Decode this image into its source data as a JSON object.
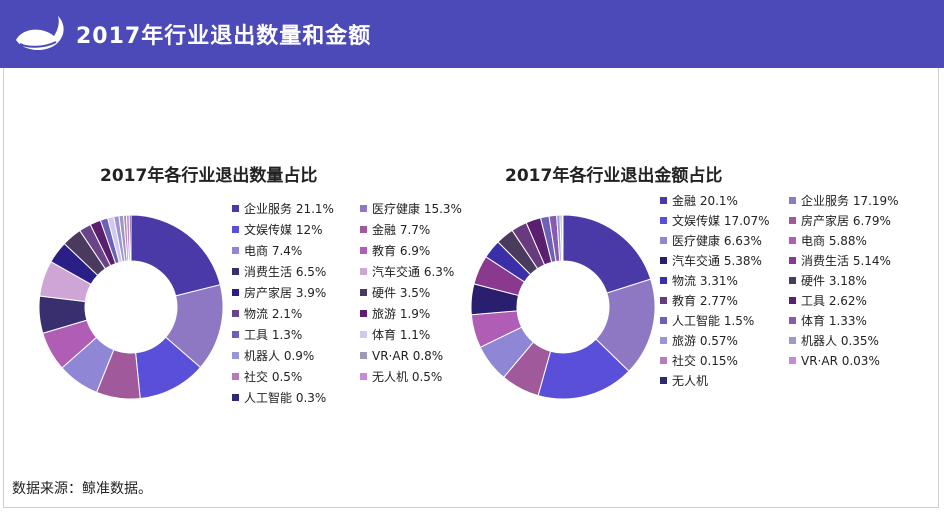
{
  "header": {
    "title": "2017年行业退出数量和金额"
  },
  "source_note": "数据来源：鲸准数据。",
  "colors": {
    "header": "#4c4ab8"
  },
  "chart_data": [
    {
      "type": "pie",
      "donut": true,
      "title": "2017年各行业退出数量占比",
      "legend_position": "right",
      "slices": [
        {
          "label": "企业服务 21.1%",
          "name": "企业服务",
          "value": 21.1,
          "color": "#4a3aa8"
        },
        {
          "label": "医疗健康 15.3%",
          "name": "医疗健康",
          "value": 15.3,
          "color": "#8e78c4"
        },
        {
          "label": "文娱传媒 12%",
          "name": "文娱传媒",
          "value": 12.0,
          "color": "#5a4fd8"
        },
        {
          "label": "金融 7.7%",
          "name": "金融",
          "value": 7.7,
          "color": "#a05a9c"
        },
        {
          "label": "电商 7.4%",
          "name": "电商",
          "value": 7.4,
          "color": "#8f86d6"
        },
        {
          "label": "教育 6.9%",
          "name": "教育",
          "value": 6.9,
          "color": "#b05db5"
        },
        {
          "label": "消费生活 6.5%",
          "name": "消费生活",
          "value": 6.5,
          "color": "#3a2f6e"
        },
        {
          "label": "汽车交通 6.3%",
          "name": "汽车交通",
          "value": 6.3,
          "color": "#cfa5d6"
        },
        {
          "label": "房产家居 3.9%",
          "name": "房产家居",
          "value": 3.9,
          "color": "#2a1f86"
        },
        {
          "label": "硬件 3.5%",
          "name": "硬件",
          "value": 3.5,
          "color": "#4a3a5e"
        },
        {
          "label": "物流 2.1%",
          "name": "物流",
          "value": 2.1,
          "color": "#6a4488"
        },
        {
          "label": "旅游 1.9%",
          "name": "旅游",
          "value": 1.9,
          "color": "#5a1f6e"
        },
        {
          "label": "工具 1.3%",
          "name": "工具",
          "value": 1.3,
          "color": "#6b62b8"
        },
        {
          "label": "体育 1.1%",
          "name": "体育",
          "value": 1.1,
          "color": "#d0c8f2"
        },
        {
          "label": "机器人 0.9%",
          "name": "机器人",
          "value": 0.9,
          "color": "#9a96d6"
        },
        {
          "label": "VR·AR 0.8%",
          "name": "VR·AR",
          "value": 0.8,
          "color": "#a098b8"
        },
        {
          "label": "社交 0.5%",
          "name": "社交",
          "value": 0.5,
          "color": "#b87ab8"
        },
        {
          "label": "无人机 0.5%",
          "name": "无人机",
          "value": 0.5,
          "color": "#c68ad6"
        },
        {
          "label": "人工智能 0.3%",
          "name": "人工智能",
          "value": 0.3,
          "color": "#2f2a6e"
        }
      ]
    },
    {
      "type": "pie",
      "donut": true,
      "title": "2017年各行业退出金额占比",
      "legend_position": "right",
      "slices": [
        {
          "label": "金融 20.1%",
          "name": "金融",
          "value": 20.1,
          "color": "#4a3aa8"
        },
        {
          "label": "企业服务 17.19%",
          "name": "企业服务",
          "value": 17.19,
          "color": "#8e78c4"
        },
        {
          "label": "文娱传媒 17.07%",
          "name": "文娱传媒",
          "value": 17.07,
          "color": "#5a4fd8"
        },
        {
          "label": "房产家居 6.79%",
          "name": "房产家居",
          "value": 6.79,
          "color": "#a05a9c"
        },
        {
          "label": "医疗健康 6.63%",
          "name": "医疗健康",
          "value": 6.63,
          "color": "#8f86d6"
        },
        {
          "label": "电商 5.88%",
          "name": "电商",
          "value": 5.88,
          "color": "#b05db5"
        },
        {
          "label": "汽车交通 5.38%",
          "name": "汽车交通",
          "value": 5.38,
          "color": "#2a1f6e"
        },
        {
          "label": "消费生活 5.14%",
          "name": "消费生活",
          "value": 5.14,
          "color": "#8a3a8e"
        },
        {
          "label": "物流 3.31%",
          "name": "物流",
          "value": 3.31,
          "color": "#3a2fa8"
        },
        {
          "label": "硬件 3.18%",
          "name": "硬件",
          "value": 3.18,
          "color": "#4a3a5e"
        },
        {
          "label": "教育 2.77%",
          "name": "教育",
          "value": 2.77,
          "color": "#6a3a7e"
        },
        {
          "label": "工具 2.62%",
          "name": "工具",
          "value": 2.62,
          "color": "#5a1f6e"
        },
        {
          "label": "人工智能 1.5%",
          "name": "人工智能",
          "value": 1.5,
          "color": "#6b62b8"
        },
        {
          "label": "体育 1.33%",
          "name": "体育",
          "value": 1.33,
          "color": "#8a5ab0"
        },
        {
          "label": "旅游 0.57%",
          "name": "旅游",
          "value": 0.57,
          "color": "#9a96d6"
        },
        {
          "label": "机器人 0.35%",
          "name": "机器人",
          "value": 0.35,
          "color": "#a098c8"
        },
        {
          "label": "社交 0.15%",
          "name": "社交",
          "value": 0.15,
          "color": "#b87ab8"
        },
        {
          "label": "VR·AR 0.03%",
          "name": "VR·AR",
          "value": 0.03,
          "color": "#c68ad6"
        },
        {
          "label": "无人机",
          "name": "无人机",
          "value": 0,
          "color": "#2f2a6e"
        }
      ]
    }
  ]
}
